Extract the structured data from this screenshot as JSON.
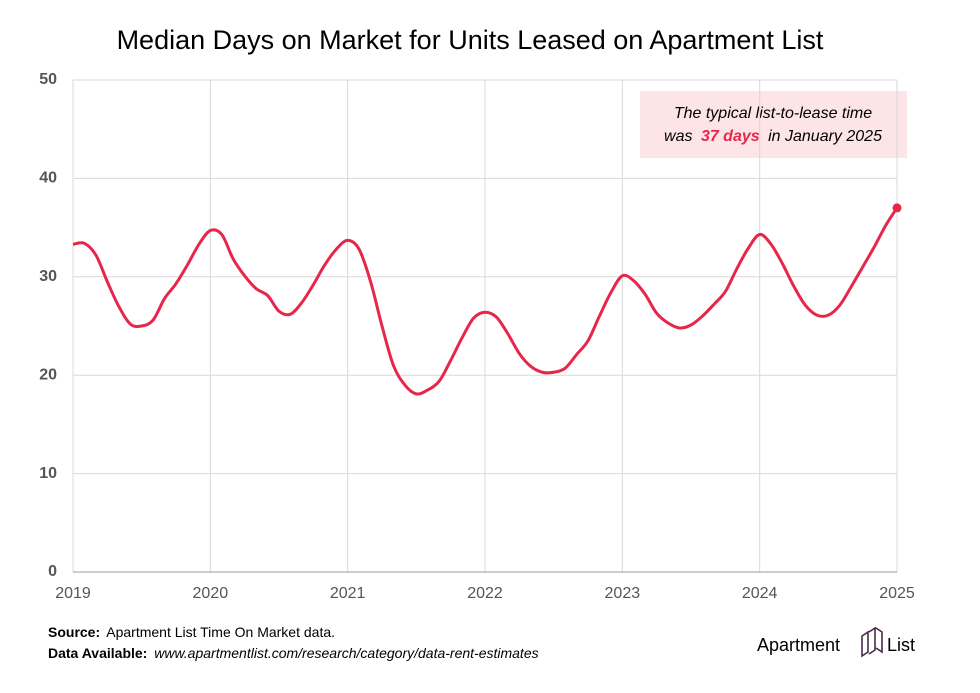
{
  "chart_data": {
    "type": "line",
    "title": "Median Days on Market for Units Leased on Apartment List",
    "annotation": {
      "line1": "The typical list-to-lease time",
      "line2_start": "was",
      "highlight": "37 days",
      "line2_end": "in January 2025"
    },
    "source_label": "Source:",
    "source_text": "Apartment List Time On Market data.",
    "data_label": "Data Available:",
    "data_text": "www.apartmentlist.com/research/category/data-rent-estimates",
    "logo": [
      "Apartment",
      "List"
    ],
    "x": [
      2019,
      2019.083,
      2019.167,
      2019.25,
      2019.333,
      2019.417,
      2019.5,
      2019.583,
      2019.667,
      2019.75,
      2019.833,
      2019.917,
      2020,
      2020.083,
      2020.167,
      2020.25,
      2020.333,
      2020.417,
      2020.5,
      2020.583,
      2020.667,
      2020.75,
      2020.833,
      2020.917,
      2021,
      2021.083,
      2021.167,
      2021.25,
      2021.333,
      2021.417,
      2021.5,
      2021.583,
      2021.667,
      2021.75,
      2021.833,
      2021.917,
      2022,
      2022.083,
      2022.167,
      2022.25,
      2022.333,
      2022.417,
      2022.5,
      2022.583,
      2022.667,
      2022.75,
      2022.833,
      2022.917,
      2023,
      2023.083,
      2023.167,
      2023.25,
      2023.333,
      2023.417,
      2023.5,
      2023.583,
      2023.667,
      2023.75,
      2023.833,
      2023.917,
      2024,
      2024.083,
      2024.167,
      2024.25,
      2024.333,
      2024.417,
      2024.5,
      2024.583,
      2024.667,
      2024.75,
      2024.833,
      2024.917,
      2025
    ],
    "series": [
      {
        "name": "Median days on market",
        "color": "#e8264a",
        "values": [
          33.3,
          33.4,
          32.2,
          29.5,
          27,
          25.2,
          25,
          25.6,
          27.8,
          29.3,
          31.2,
          33.3,
          34.7,
          34.3,
          31.8,
          30.1,
          28.8,
          28.1,
          26.5,
          26.2,
          27.4,
          29.2,
          31.2,
          32.8,
          33.7,
          32.8,
          29.5,
          25,
          21,
          19,
          18.1,
          18.5,
          19.4,
          21.5,
          23.8,
          25.8,
          26.4,
          25.9,
          24.2,
          22.2,
          20.9,
          20.3,
          20.3,
          20.7,
          22.1,
          23.5,
          26,
          28.4,
          30.1,
          29.6,
          28.2,
          26.3,
          25.3,
          24.8,
          25.1,
          26,
          27.2,
          28.5,
          30.8,
          32.9,
          34.3,
          33.3,
          31.3,
          29,
          27.1,
          26.1,
          26.1,
          27.1,
          29,
          31,
          33,
          35.2,
          37
        ]
      }
    ],
    "xlim": [
      2019,
      2025
    ],
    "xticks": [
      2019,
      2020,
      2021,
      2022,
      2023,
      2024,
      2025
    ],
    "ylim": [
      0,
      50
    ],
    "yticks": [
      0,
      10,
      20,
      30,
      40,
      50
    ],
    "grid": true
  }
}
